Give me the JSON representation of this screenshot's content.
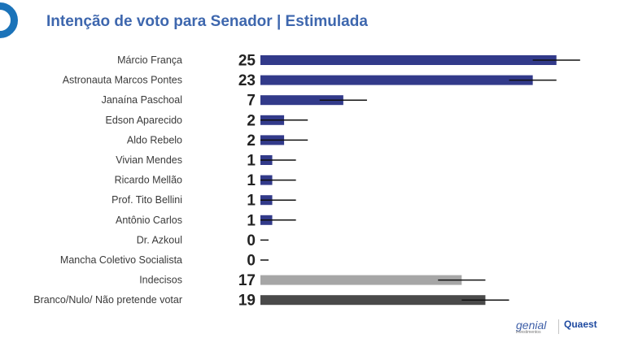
{
  "title": "Intenção de voto para Senador | Estimulada",
  "chart_data": {
    "type": "bar",
    "orientation": "horizontal",
    "title": "Intenção de voto para Senador | Estimulada",
    "categories": [
      "Márcio França",
      "Astronauta Marcos Pontes",
      "Janaína Paschoal",
      "Edson Aparecido",
      "Aldo Rebelo",
      "Vivian Mendes",
      "Ricardo Mellão",
      "Prof. Tito Bellini",
      "Antônio Carlos",
      "Dr. Azkoul",
      "Mancha Coletivo Socialista",
      "Indecisos",
      "Branco/Nulo/ Não pretende votar"
    ],
    "values": [
      25,
      23,
      7,
      2,
      2,
      1,
      1,
      1,
      1,
      0,
      0,
      17,
      19
    ],
    "error_margin": 2,
    "colors": [
      "#323a8a",
      "#323a8a",
      "#323a8a",
      "#323a8a",
      "#323a8a",
      "#323a8a",
      "#323a8a",
      "#323a8a",
      "#323a8a",
      "#323a8a",
      "#323a8a",
      "#a6a6a6",
      "#4a4a4a"
    ],
    "xlim": [
      0,
      27
    ],
    "grid": false,
    "legend": "none"
  },
  "brands": {
    "genial": "genial",
    "genial_sub": "investimentos",
    "quaest": "Quaest"
  }
}
